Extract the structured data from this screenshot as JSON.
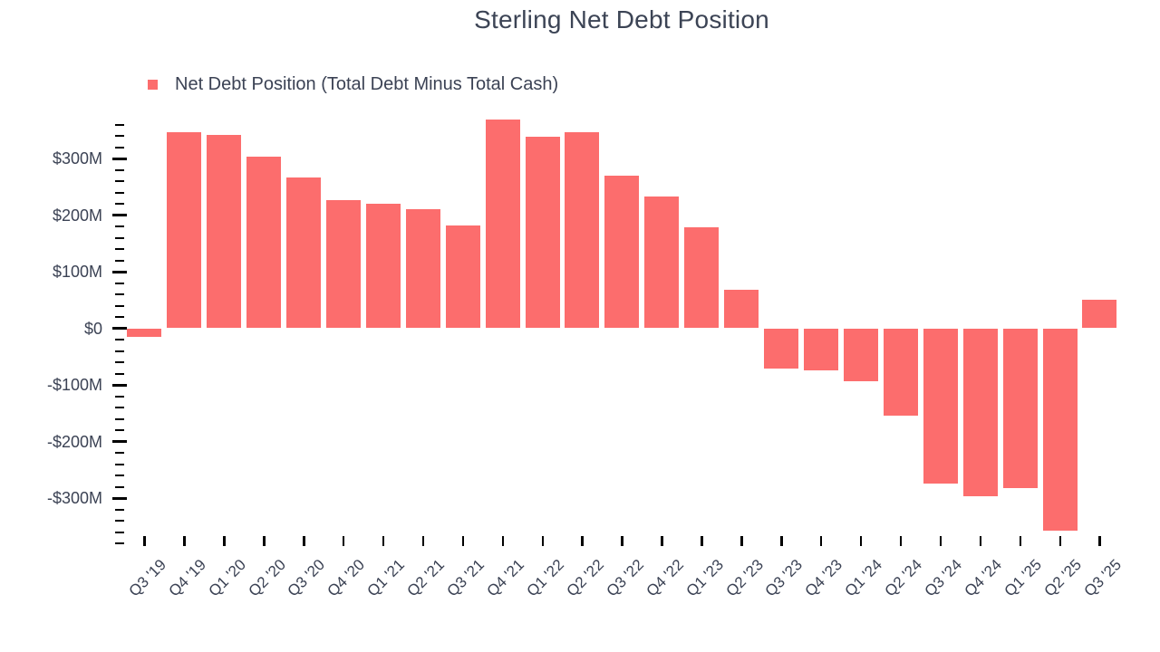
{
  "title": "Sterling Net Debt Position",
  "legend": {
    "label": "Net Debt Position (Total Debt Minus Total Cash)"
  },
  "colors": {
    "bar": "#fc6d6d",
    "text": "#3b4254",
    "tick": "#000000",
    "background": "#ffffff"
  },
  "chart_data": {
    "type": "bar",
    "title": "Sterling Net Debt Position",
    "series_name": "Net Debt Position (Total Debt Minus Total Cash)",
    "unit": "USD millions",
    "categories": [
      "Q3 '19",
      "Q4 '19",
      "Q1 '20",
      "Q2 '20",
      "Q3 '20",
      "Q4 '20",
      "Q1 '21",
      "Q2 '21",
      "Q3 '21",
      "Q4 '21",
      "Q1 '22",
      "Q2 '22",
      "Q3 '22",
      "Q4 '22",
      "Q1 '23",
      "Q2 '23",
      "Q3 '23",
      "Q4 '23",
      "Q1 '24",
      "Q2 '24",
      "Q3 '24",
      "Q4 '24",
      "Q1 '25",
      "Q2 '25",
      "Q3 '25"
    ],
    "values": [
      -14,
      345,
      341,
      302,
      265,
      226,
      219,
      210,
      181,
      368,
      338,
      346,
      269,
      232,
      177,
      68,
      -71,
      -74,
      -92,
      -154,
      -274,
      -296,
      -281,
      -357,
      50
    ],
    "xlabel": "",
    "ylabel": "",
    "ylim": [
      -380,
      360
    ],
    "y_major_ticks": [
      {
        "value": 300,
        "label": "$300M"
      },
      {
        "value": 200,
        "label": "$200M"
      },
      {
        "value": 100,
        "label": "$100M"
      },
      {
        "value": 0,
        "label": "$0"
      },
      {
        "value": -100,
        "label": "-$100M"
      },
      {
        "value": -200,
        "label": "-$200M"
      },
      {
        "value": -300,
        "label": "-$300M"
      }
    ],
    "y_minor_step": 20,
    "grid": false,
    "legend_position": "top-left",
    "bar_color": "#fc6d6d"
  }
}
